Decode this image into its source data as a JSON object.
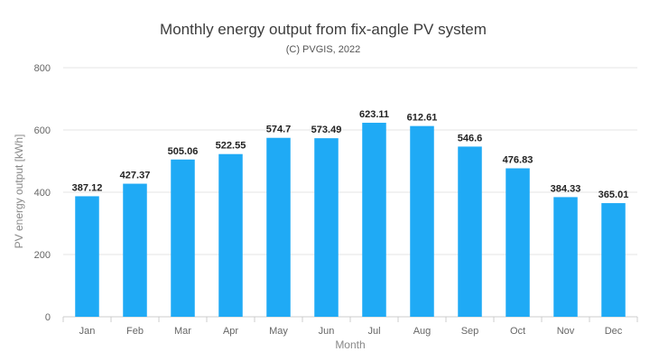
{
  "chart_data": {
    "type": "bar",
    "title": "Monthly energy output from fix-angle PV system",
    "subtitle": "(C) PVGIS, 2022",
    "xlabel": "Month",
    "ylabel": "PV energy output [kWh]",
    "ylim": [
      0,
      800
    ],
    "yticks": [
      0,
      200,
      400,
      600,
      800
    ],
    "grid": true,
    "categories": [
      "Jan",
      "Feb",
      "Mar",
      "Apr",
      "May",
      "Jun",
      "Jul",
      "Aug",
      "Sep",
      "Oct",
      "Nov",
      "Dec"
    ],
    "values": [
      387.12,
      427.37,
      505.06,
      522.55,
      574.7,
      573.49,
      623.11,
      612.61,
      546.6,
      476.83,
      384.33,
      365.01
    ],
    "value_labels": [
      "387.12",
      "427.37",
      "505.06",
      "522.55",
      "574.7",
      "573.49",
      "623.11",
      "612.61",
      "546.6",
      "476.83",
      "384.33",
      "365.01"
    ],
    "bar_color": "#1faaf5"
  }
}
